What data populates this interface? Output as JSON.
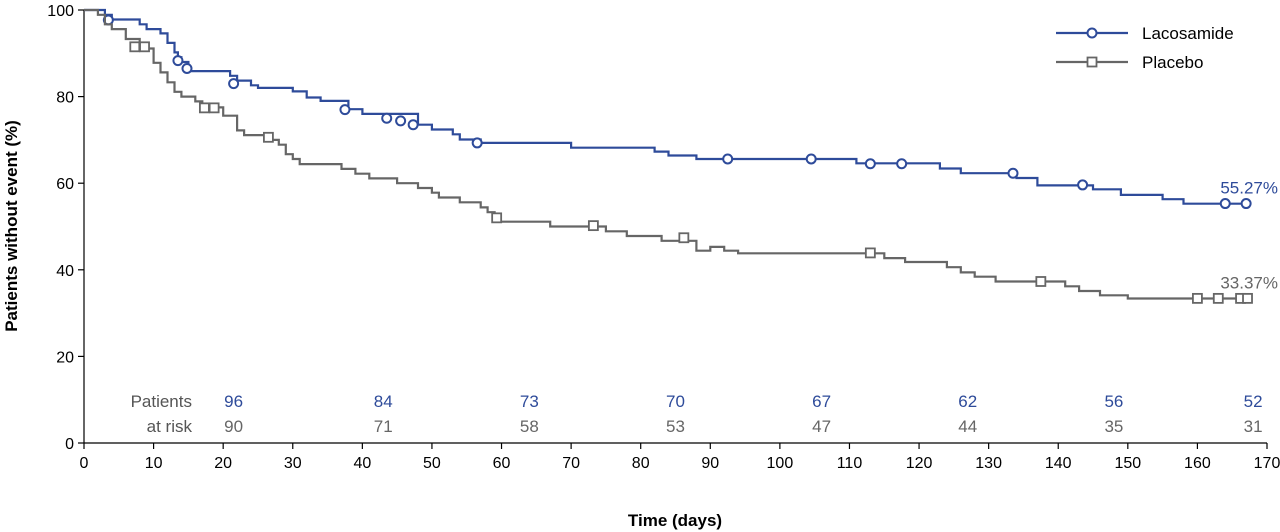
{
  "chart_data": {
    "type": "line",
    "xlabel": "Time (days)",
    "ylabel": "Patients without event (%)",
    "xlim": [
      0,
      170
    ],
    "ylim": [
      0,
      100
    ],
    "xticks": [
      0,
      10,
      20,
      30,
      40,
      50,
      60,
      70,
      80,
      90,
      100,
      110,
      120,
      130,
      140,
      150,
      160,
      170
    ],
    "yticks": [
      0,
      20,
      40,
      60,
      80,
      100
    ],
    "grid": false,
    "legend_position": "top-right",
    "series": [
      {
        "name": "Lacosamide",
        "color": "#2e4b9a",
        "marker": "circle",
        "end_label": "55.27%",
        "steps": [
          [
            0,
            100
          ],
          [
            3,
            98.9
          ],
          [
            4,
            97.8
          ],
          [
            8,
            96.7
          ],
          [
            9,
            95.6
          ],
          [
            11,
            94.6
          ],
          [
            12,
            92.4
          ],
          [
            13,
            90.2
          ],
          [
            13.5,
            89.1
          ],
          [
            14,
            88.0
          ],
          [
            15,
            85.9
          ],
          [
            21,
            84.8
          ],
          [
            22,
            83.7
          ],
          [
            24,
            82.6
          ],
          [
            25,
            82.0
          ],
          [
            30,
            81.2
          ],
          [
            32,
            79.8
          ],
          [
            34,
            79.0
          ],
          [
            38,
            77.1
          ],
          [
            40,
            76.0
          ],
          [
            48,
            73.5
          ],
          [
            50,
            72.4
          ],
          [
            53,
            71.3
          ],
          [
            54,
            70.1
          ],
          [
            57,
            69.3
          ],
          [
            70,
            68.2
          ],
          [
            82,
            67.3
          ],
          [
            84,
            66.4
          ],
          [
            88,
            65.6
          ],
          [
            111,
            64.6
          ],
          [
            123,
            63.4
          ],
          [
            126,
            62.3
          ],
          [
            134,
            61.2
          ],
          [
            137,
            59.5
          ],
          [
            145,
            58.6
          ],
          [
            149,
            57.3
          ],
          [
            155,
            56.3
          ],
          [
            158,
            55.27
          ],
          [
            167,
            55.27
          ]
        ],
        "censored": [
          [
            3.5,
            97.7
          ],
          [
            13.5,
            88.3
          ],
          [
            14.8,
            86.5
          ],
          [
            21.5,
            83.0
          ],
          [
            37.5,
            77.0
          ],
          [
            43.5,
            75.0
          ],
          [
            45.5,
            74.4
          ],
          [
            47.3,
            73.5
          ],
          [
            56.5,
            69.3
          ],
          [
            92.5,
            65.6
          ],
          [
            104.5,
            65.6
          ],
          [
            113,
            64.5
          ],
          [
            117.5,
            64.5
          ],
          [
            133.5,
            62.3
          ],
          [
            143.5,
            59.6
          ],
          [
            164,
            55.3
          ],
          [
            167,
            55.3
          ]
        ]
      },
      {
        "name": "Placebo",
        "color": "#666666",
        "marker": "square",
        "end_label": "33.37%",
        "steps": [
          [
            0,
            100
          ],
          [
            2,
            98.9
          ],
          [
            3,
            96.7
          ],
          [
            4,
            95.6
          ],
          [
            6,
            93.3
          ],
          [
            8,
            92.2
          ],
          [
            9,
            91.1
          ],
          [
            10,
            87.8
          ],
          [
            11,
            85.6
          ],
          [
            12,
            83.3
          ],
          [
            13,
            81.1
          ],
          [
            14,
            80.0
          ],
          [
            16,
            78.9
          ],
          [
            17,
            77.5
          ],
          [
            20,
            75.6
          ],
          [
            22,
            72.2
          ],
          [
            23,
            71.1
          ],
          [
            26,
            70.0
          ],
          [
            28,
            68.9
          ],
          [
            29,
            66.7
          ],
          [
            30,
            65.6
          ],
          [
            31,
            64.4
          ],
          [
            37,
            63.3
          ],
          [
            39,
            62.2
          ],
          [
            41,
            61.1
          ],
          [
            45,
            60.0
          ],
          [
            48,
            58.9
          ],
          [
            50,
            57.8
          ],
          [
            51,
            56.7
          ],
          [
            54,
            55.6
          ],
          [
            57,
            54.4
          ],
          [
            58,
            53.3
          ],
          [
            59,
            51.1
          ],
          [
            67,
            50.0
          ],
          [
            75,
            48.9
          ],
          [
            78,
            47.8
          ],
          [
            83,
            46.7
          ],
          [
            88,
            44.4
          ],
          [
            90,
            45.3
          ],
          [
            92,
            44.4
          ],
          [
            94,
            43.8
          ],
          [
            115,
            42.7
          ],
          [
            118,
            41.8
          ],
          [
            124,
            40.6
          ],
          [
            126,
            39.4
          ],
          [
            128,
            38.4
          ],
          [
            131,
            37.3
          ],
          [
            141,
            36.2
          ],
          [
            143,
            35.1
          ],
          [
            146,
            34.1
          ],
          [
            150,
            33.37
          ],
          [
            167,
            33.37
          ]
        ],
        "censored": [
          [
            7.3,
            91.5
          ],
          [
            8.7,
            91.5
          ],
          [
            17.3,
            77.4
          ],
          [
            18.7,
            77.4
          ],
          [
            26.5,
            70.6
          ],
          [
            59.3,
            52.0
          ],
          [
            73.2,
            50.2
          ],
          [
            86.2,
            47.4
          ],
          [
            113,
            43.9
          ],
          [
            137.5,
            37.3
          ],
          [
            160,
            33.4
          ],
          [
            163,
            33.4
          ],
          [
            166.2,
            33.4
          ],
          [
            167.2,
            33.4
          ]
        ]
      }
    ],
    "risk_table": {
      "label_line1": "Patients",
      "label_line2": "at risk",
      "times": [
        21.5,
        43,
        64,
        85,
        106,
        127,
        148,
        168
      ],
      "lacosamide": [
        "96",
        "84",
        "73",
        "70",
        "67",
        "62",
        "56",
        "52"
      ],
      "placebo": [
        "90",
        "71",
        "58",
        "53",
        "47",
        "44",
        "35",
        "31"
      ]
    }
  }
}
